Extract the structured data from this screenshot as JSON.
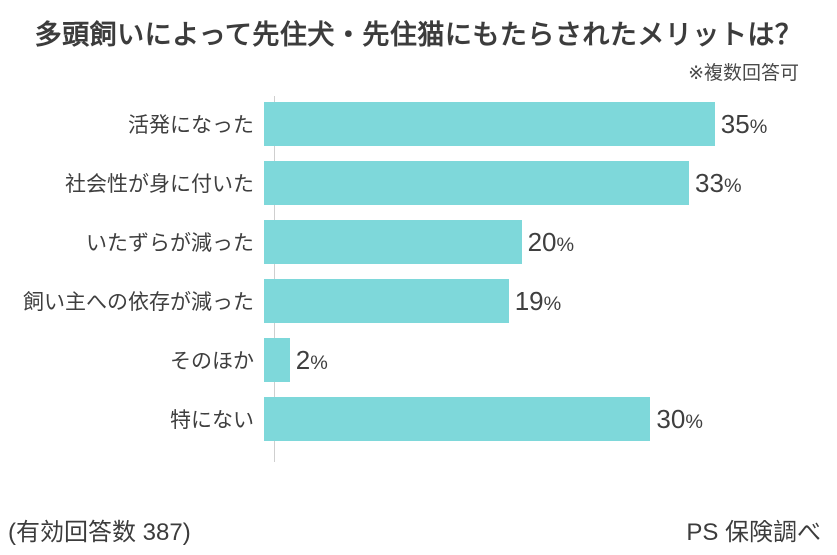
{
  "title": "多頭飼いによって先住犬・先住猫にもたらされたメリットは？",
  "note": "※複数回答可",
  "footer": {
    "left": "(有効回答数 387)",
    "right": "PS 保険調べ"
  },
  "colors": {
    "bar": "#7ed8da",
    "text": "#3f3f3f",
    "axis": "#cfcfcf"
  },
  "chart_data": {
    "type": "bar",
    "orientation": "horizontal",
    "title": "多頭飼いによって先住犬・先住猫にもたらされたメリットは？",
    "subtitle": "※複数回答可",
    "categories": [
      "活発になった",
      "社会性が身に付いた",
      "いたずらが減った",
      "飼い主への依存が減った",
      "そのほか",
      "特にない"
    ],
    "values": [
      35,
      33,
      20,
      19,
      2,
      30
    ],
    "unit": "%",
    "value_labels": [
      "35%",
      "33%",
      "20%",
      "19%",
      "2%",
      "30%"
    ],
    "xlim": [
      0,
      43
    ],
    "grid": false,
    "legend": false,
    "source_left": "(有効回答数 387)",
    "source_right": "PS 保険調べ"
  }
}
